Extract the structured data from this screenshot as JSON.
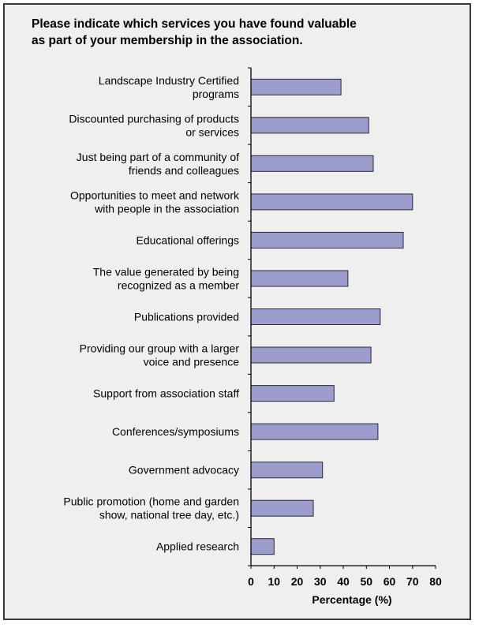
{
  "chart_data": {
    "type": "bar",
    "orientation": "horizontal",
    "title_lines": [
      "Please indicate which services you have found valuable",
      "as part of your membership in the association."
    ],
    "xlabel": "Percentage (%)",
    "ylabel": "",
    "xlim": [
      0,
      80
    ],
    "ticks": [
      "0",
      "10",
      "20",
      "30",
      "40",
      "50",
      "60",
      "70",
      "80"
    ],
    "grid": false,
    "bar_color": "#9c9ccd",
    "categories": [
      [
        "Landscape Industry Certified",
        "programs"
      ],
      [
        "Discounted purchasing of products",
        "or services"
      ],
      [
        "Just being part of a community of",
        "friends and colleagues"
      ],
      [
        "Opportunities to meet and network",
        "with people in the association"
      ],
      [
        "Educational offerings"
      ],
      [
        "The value generated by being",
        "recognized as a member"
      ],
      [
        "Publications provided"
      ],
      [
        "Providing our group with a larger",
        "voice and presence"
      ],
      [
        "Support from association staff"
      ],
      [
        "Conferences/symposiums"
      ],
      [
        "Government advocacy"
      ],
      [
        "Public promotion (home and garden",
        "show, national tree day, etc.)"
      ],
      [
        "Applied research"
      ]
    ],
    "values": [
      39,
      51,
      53,
      70,
      66,
      42,
      56,
      52,
      36,
      55,
      31,
      27,
      10
    ]
  }
}
